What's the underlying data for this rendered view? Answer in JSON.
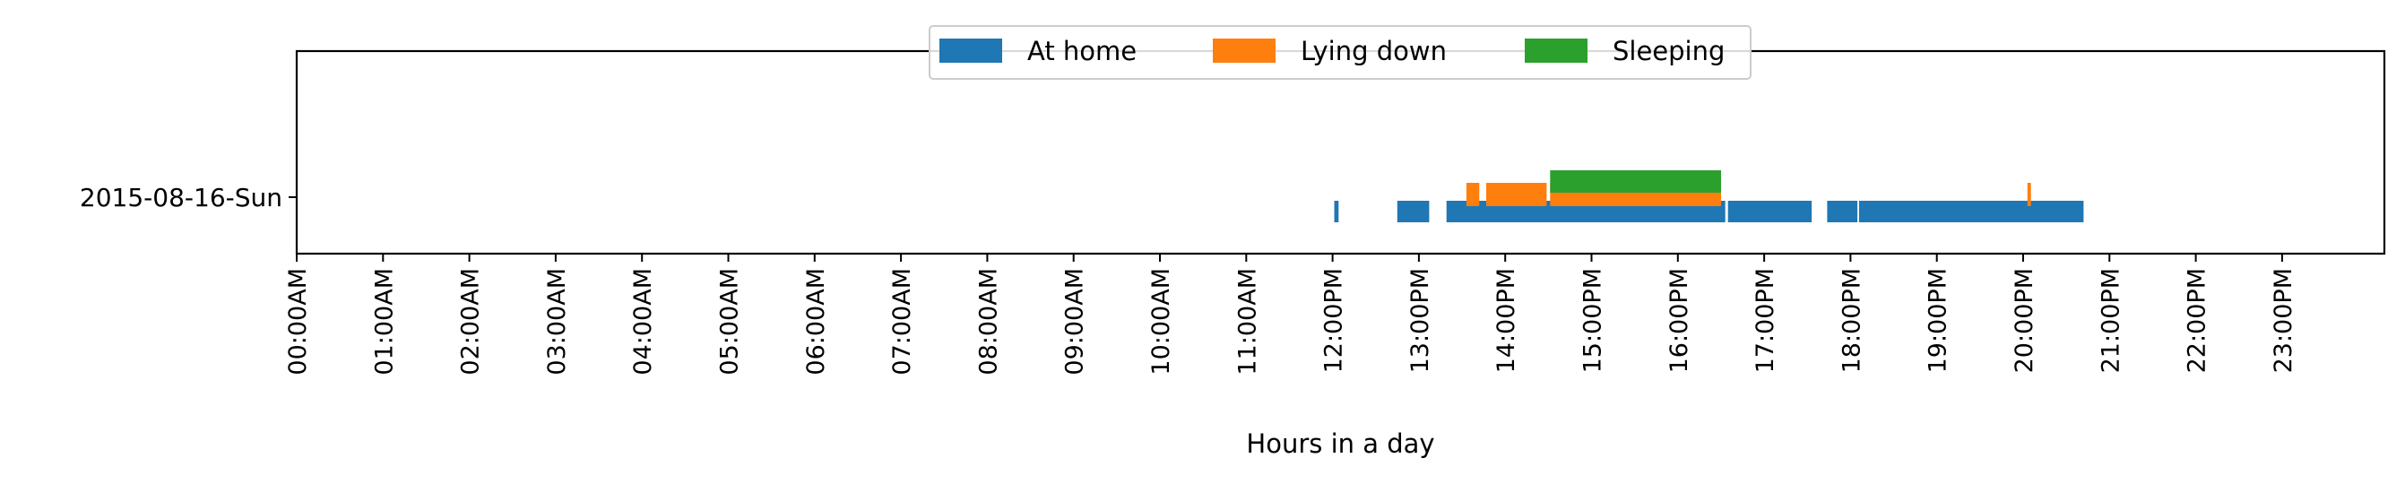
{
  "chart_data": {
    "type": "timeline",
    "xlabel": "Hours in a day",
    "xlim": [
      0,
      24
    ],
    "x_ticks": [
      "00:00AM",
      "01:00AM",
      "02:00AM",
      "03:00AM",
      "04:00AM",
      "05:00AM",
      "06:00AM",
      "07:00AM",
      "08:00AM",
      "09:00AM",
      "10:00AM",
      "11:00AM",
      "12:00PM",
      "13:00PM",
      "14:00PM",
      "15:00PM",
      "16:00PM",
      "17:00PM",
      "18:00PM",
      "19:00PM",
      "20:00PM",
      "21:00PM",
      "22:00PM",
      "23:00PM"
    ],
    "categories": [
      "2015-08-16-Sun"
    ],
    "legend_position": "top-center",
    "series": [
      {
        "name": "At home",
        "color": "#1f77b4",
        "intervals": [
          [
            12.02,
            12.07
          ],
          [
            12.75,
            13.12
          ],
          [
            13.32,
            16.55
          ],
          [
            16.58,
            17.55
          ],
          [
            17.73,
            18.08
          ],
          [
            18.1,
            20.7
          ]
        ]
      },
      {
        "name": "Lying down",
        "color": "#ff7f0e",
        "intervals": [
          [
            13.55,
            13.7
          ],
          [
            13.78,
            14.48
          ],
          [
            14.52,
            16.5
          ],
          [
            20.05,
            20.09
          ]
        ]
      },
      {
        "name": "Sleeping",
        "color": "#2ca02c",
        "intervals": [
          [
            14.52,
            16.5
          ]
        ]
      }
    ]
  }
}
